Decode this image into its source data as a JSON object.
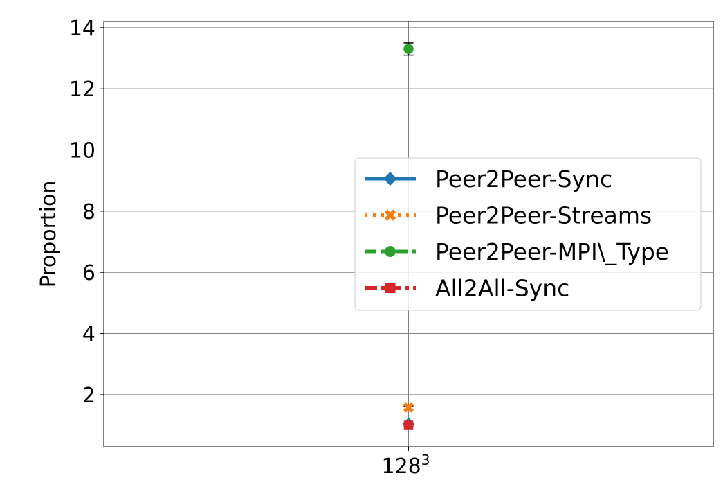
{
  "chart_data": {
    "type": "line",
    "categories": [
      "128"
    ],
    "category_superscripts": [
      "3"
    ],
    "ylabel": "Proportion",
    "xlabel": "",
    "title": "",
    "ylim": [
      0.3,
      14.2
    ],
    "yticks": [
      2,
      4,
      6,
      8,
      10,
      12,
      14
    ],
    "grid": true,
    "legend_position": "center-right",
    "series": [
      {
        "name": "Peer2Peer-Sync",
        "color": "#1f77b4",
        "marker": "diamond",
        "linestyle": "solid",
        "values": [
          1.05
        ],
        "errors": [
          0.04
        ]
      },
      {
        "name": "Peer2Peer-Streams",
        "color": "#ff7f0e",
        "marker": "x",
        "linestyle": "dotted",
        "values": [
          1.58
        ],
        "errors": [
          0.05
        ]
      },
      {
        "name": "Peer2Peer-MPI\\_Type",
        "color": "#2ca02c",
        "marker": "circle",
        "linestyle": "dashed",
        "values": [
          13.3
        ],
        "errors": [
          0.2
        ]
      },
      {
        "name": "All2All-Sync",
        "color": "#d62728",
        "marker": "square",
        "linestyle": "dashdot",
        "values": [
          1.0
        ],
        "errors": [
          0.03
        ]
      }
    ]
  }
}
